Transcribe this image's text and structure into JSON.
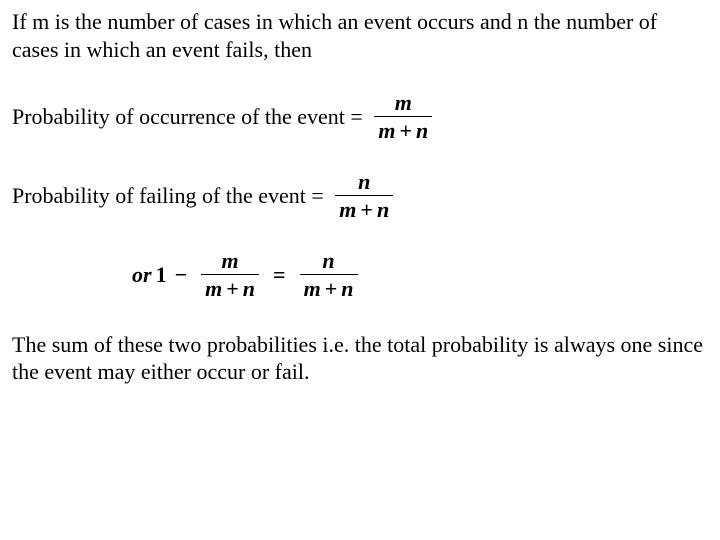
{
  "intro": "If m is the number of cases in which an event occurs and n the number of cases in which an event fails, then",
  "line1_label": "Probability of occurrence of the event = ",
  "line2_label": "Probability of failing of the event = ",
  "frac1": {
    "num": "m",
    "den_a": "m",
    "den_b": "n"
  },
  "frac2": {
    "num": "n",
    "den_a": "m",
    "den_b": "n"
  },
  "eqline": {
    "or_word": "or",
    "one": "1",
    "minus": "−",
    "eq": "=",
    "left": {
      "num": "m",
      "den_a": "m",
      "den_b": "n"
    },
    "right": {
      "num": "n",
      "den_a": "m",
      "den_b": "n"
    }
  },
  "conclusion": "The sum of these two probabilities i.e. the total probability is always one since the event may either occur or fail.",
  "plus": "+"
}
